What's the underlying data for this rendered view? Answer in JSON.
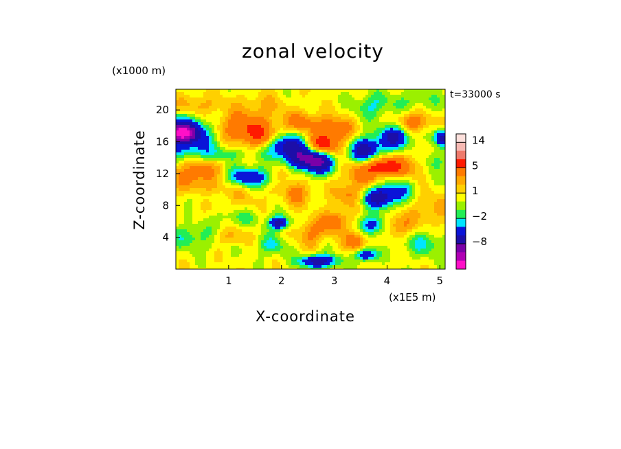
{
  "chart_data": {
    "type": "heatmap",
    "title": "zonal velocity",
    "time_label": "t=33000 s",
    "xlabel": "X-coordinate",
    "x_unit": "(x1E5 m)",
    "ylabel": "Z-coordinate",
    "y_unit": "(x1000 m)",
    "x_ticks": [
      1,
      2,
      3,
      4,
      5
    ],
    "y_ticks": [
      4,
      8,
      12,
      16,
      20
    ],
    "xlim": [
      0,
      5.1
    ],
    "ylim": [
      0,
      22.6
    ],
    "grid": false,
    "colorbar": {
      "position": "right",
      "tick_labels": [
        {
          "value": 14,
          "label": "14"
        },
        {
          "value": 5,
          "label": "5"
        },
        {
          "value": 1,
          "label": "1"
        },
        {
          "value": -2,
          "label": "−2"
        },
        {
          "value": -8,
          "label": "−8"
        }
      ],
      "levels": [
        {
          "min": 16,
          "max": 20,
          "color": "#fde0dc"
        },
        {
          "min": 12,
          "max": 16,
          "color": "#f7b9b3"
        },
        {
          "min": 8,
          "max": 12,
          "color": "#ee7a6c"
        },
        {
          "min": 5,
          "max": 8,
          "color": "#ff1a00"
        },
        {
          "min": 3,
          "max": 5,
          "color": "#ff7a00"
        },
        {
          "min": 2,
          "max": 3,
          "color": "#ffa800"
        },
        {
          "min": 1,
          "max": 2,
          "color": "#ffd000"
        },
        {
          "min": 0,
          "max": 1,
          "color": "#ffff00"
        },
        {
          "min": -1,
          "max": 0,
          "color": "#9bf000"
        },
        {
          "min": -2,
          "max": -1,
          "color": "#22ee55"
        },
        {
          "min": -3,
          "max": -2,
          "color": "#00e5ff"
        },
        {
          "min": -5,
          "max": -3,
          "color": "#0a14d8"
        },
        {
          "min": -8,
          "max": -5,
          "color": "#1c0ea8"
        },
        {
          "min": -11,
          "max": -8,
          "color": "#7a00a8"
        },
        {
          "min": -14,
          "max": -11,
          "color": "#b000b4"
        },
        {
          "min": -20,
          "max": -14,
          "color": "#ff10c8"
        }
      ]
    },
    "blobs": [
      {
        "x": 0.15,
        "z": 17.0,
        "rx": 0.55,
        "rz": 2.0,
        "v": -8
      },
      {
        "x": 0.12,
        "z": 17.1,
        "rx": 0.2,
        "rz": 0.9,
        "v": -10
      },
      {
        "x": 0.4,
        "z": 12.2,
        "rx": 0.45,
        "rz": 1.6,
        "v": 3
      },
      {
        "x": 0.85,
        "z": 10.3,
        "rx": 0.9,
        "rz": 2.2,
        "v": 2
      },
      {
        "x": 1.35,
        "z": 11.5,
        "rx": 0.5,
        "rz": 1.3,
        "v": -6
      },
      {
        "x": 1.25,
        "z": 17.8,
        "rx": 0.6,
        "rz": 1.8,
        "v": 4
      },
      {
        "x": 1.6,
        "z": 16.5,
        "rx": 0.4,
        "rz": 1.4,
        "v": 3
      },
      {
        "x": 0.7,
        "z": 14.5,
        "rx": 0.9,
        "rz": 1.0,
        "v": -2
      },
      {
        "x": 2.1,
        "z": 15.5,
        "rx": 0.35,
        "rz": 1.5,
        "v": -7
      },
      {
        "x": 2.4,
        "z": 14.0,
        "rx": 0.3,
        "rz": 1.4,
        "v": -6
      },
      {
        "x": 2.7,
        "z": 13.5,
        "rx": 0.3,
        "rz": 1.5,
        "v": -8
      },
      {
        "x": 2.75,
        "z": 15.4,
        "rx": 0.32,
        "rz": 1.3,
        "v": 6
      },
      {
        "x": 3.0,
        "z": 17.5,
        "rx": 0.35,
        "rz": 1.6,
        "v": 4
      },
      {
        "x": 2.4,
        "z": 18.5,
        "rx": 0.35,
        "rz": 1.3,
        "v": 3
      },
      {
        "x": 3.6,
        "z": 15.0,
        "rx": 0.28,
        "rz": 1.5,
        "v": -7
      },
      {
        "x": 3.55,
        "z": 12.0,
        "rx": 0.4,
        "rz": 1.4,
        "v": 3
      },
      {
        "x": 3.85,
        "z": 9.0,
        "rx": 0.3,
        "rz": 1.3,
        "v": -7
      },
      {
        "x": 3.9,
        "z": 13.0,
        "rx": 0.3,
        "rz": 1.1,
        "v": 5
      },
      {
        "x": 4.15,
        "z": 16.6,
        "rx": 0.3,
        "rz": 1.5,
        "v": -6
      },
      {
        "x": 4.5,
        "z": 18.5,
        "rx": 0.3,
        "rz": 1.3,
        "v": 4
      },
      {
        "x": 4.35,
        "z": 12.8,
        "rx": 0.35,
        "rz": 1.6,
        "v": 3
      },
      {
        "x": 4.25,
        "z": 10.0,
        "rx": 0.3,
        "rz": 1.6,
        "v": -3
      },
      {
        "x": 5.05,
        "z": 16.5,
        "rx": 0.15,
        "rz": 1.0,
        "v": -7
      },
      {
        "x": 4.85,
        "z": 7.5,
        "rx": 0.4,
        "rz": 2.0,
        "v": 2
      },
      {
        "x": 4.7,
        "z": 3.2,
        "rx": 0.4,
        "rz": 1.6,
        "v": -2.5
      },
      {
        "x": 0.35,
        "z": 4.0,
        "rx": 0.5,
        "rz": 1.5,
        "v": -2.5
      },
      {
        "x": 1.0,
        "z": 4.0,
        "rx": 0.4,
        "rz": 1.0,
        "v": 2
      },
      {
        "x": 1.95,
        "z": 5.8,
        "rx": 0.18,
        "rz": 0.8,
        "v": -7
      },
      {
        "x": 1.8,
        "z": 3.0,
        "rx": 0.3,
        "rz": 1.3,
        "v": -2.5
      },
      {
        "x": 2.55,
        "z": 4.5,
        "rx": 0.25,
        "rz": 1.6,
        "v": 3
      },
      {
        "x": 3.0,
        "z": 6.0,
        "rx": 0.25,
        "rz": 1.5,
        "v": 4
      },
      {
        "x": 3.4,
        "z": 3.5,
        "rx": 0.2,
        "rz": 1.3,
        "v": 4
      },
      {
        "x": 3.75,
        "z": 5.5,
        "rx": 0.25,
        "rz": 1.2,
        "v": -5
      },
      {
        "x": 3.6,
        "z": 1.8,
        "rx": 0.2,
        "rz": 0.8,
        "v": -6
      },
      {
        "x": 2.3,
        "z": 9.5,
        "rx": 0.25,
        "rz": 1.5,
        "v": 3
      },
      {
        "x": 2.05,
        "z": 12.0,
        "rx": 0.2,
        "rz": 1.1,
        "v": 2
      },
      {
        "x": 2.7,
        "z": 1.0,
        "rx": 0.35,
        "rz": 0.8,
        "v": -7
      },
      {
        "x": 3.3,
        "z": 9.5,
        "rx": 0.3,
        "rz": 1.4,
        "v": 3
      },
      {
        "x": 4.2,
        "z": 5.5,
        "rx": 0.3,
        "rz": 1.4,
        "v": 3
      },
      {
        "x": 4.5,
        "z": 21.0,
        "rx": 0.6,
        "rz": 1.5,
        "v": -1.5
      },
      {
        "x": 3.7,
        "z": 20.5,
        "rx": 0.3,
        "rz": 1.6,
        "v": -2.5
      },
      {
        "x": 1.6,
        "z": 20.5,
        "rx": 0.5,
        "rz": 1.6,
        "v": 1.5
      },
      {
        "x": 0.4,
        "z": 20.6,
        "rx": 0.45,
        "rz": 1.3,
        "v": 2
      },
      {
        "x": 1.2,
        "z": 6.5,
        "rx": 0.5,
        "rz": 1.0,
        "v": -1.5
      },
      {
        "x": 0.5,
        "z": 9.0,
        "rx": 0.4,
        "rz": 1.0,
        "v": -1.5
      },
      {
        "x": 4.9,
        "z": 13.5,
        "rx": 0.2,
        "rz": 1.5,
        "v": -2.5
      }
    ]
  }
}
